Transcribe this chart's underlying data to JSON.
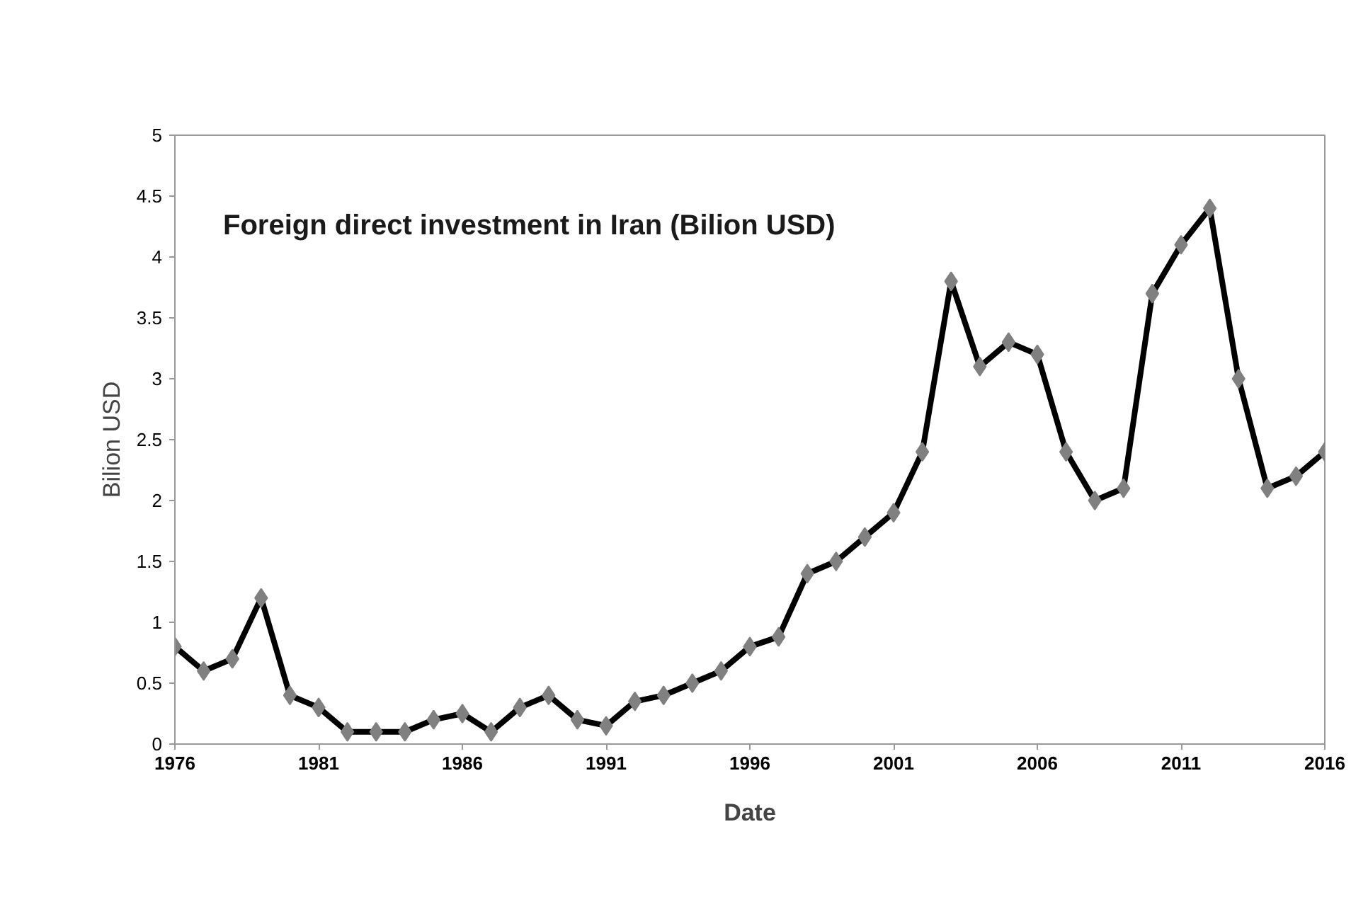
{
  "chart_data": {
    "type": "line",
    "title": "Foreign direct investment in Iran (Bilion USD)",
    "xlabel": "Date",
    "ylabel": "Bilion USD",
    "x": [
      1976,
      1977,
      1978,
      1979,
      1980,
      1981,
      1982,
      1983,
      1984,
      1985,
      1986,
      1987,
      1988,
      1989,
      1990,
      1991,
      1992,
      1993,
      1994,
      1995,
      1996,
      1997,
      1998,
      1999,
      2000,
      2001,
      2002,
      2003,
      2004,
      2005,
      2006,
      2007,
      2008,
      2009,
      2010,
      2011,
      2012,
      2013,
      2014,
      2015,
      2016
    ],
    "series": [
      {
        "color": "#000000",
        "values": [
          0.8,
          0.6,
          0.7,
          1.2,
          0.4,
          0.3,
          0.1,
          0.1,
          0.1,
          0.2,
          0.25,
          0.1,
          0.3,
          0.4,
          0.2,
          0.15,
          0.35,
          0.4,
          0.5,
          0.6,
          0.8,
          0.88,
          1.4,
          1.5,
          1.7,
          1.9,
          2.4,
          3.8,
          3.1,
          3.3,
          3.2,
          2.4,
          2.0,
          2.1,
          3.7,
          4.1,
          4.4,
          3.0,
          2.1,
          2.2,
          2.4
        ]
      }
    ],
    "xlim": [
      1976,
      2016
    ],
    "xticks": [
      1976,
      1981,
      1986,
      1991,
      1996,
      2001,
      2006,
      2011,
      2016
    ],
    "ylim": [
      0,
      5
    ],
    "yticks": [
      0,
      0.5,
      1,
      1.5,
      2,
      2.5,
      3,
      3.5,
      4,
      4.5,
      5
    ],
    "marker": "diamond",
    "line_style": "solid"
  }
}
